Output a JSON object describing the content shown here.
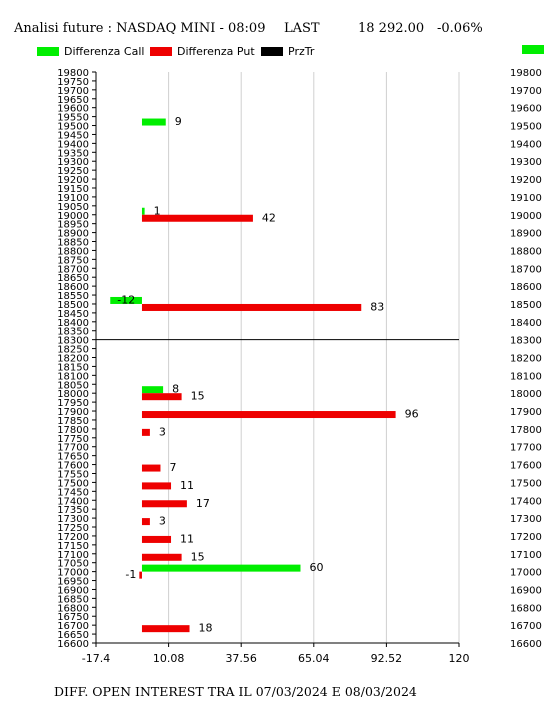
{
  "header": {
    "title": "Analisi future : NASDAQ MINI - 08:09",
    "last_label": "LAST",
    "last_value": "18 292.00",
    "change": "-0.06%"
  },
  "legend": [
    {
      "label": "Differenza Call",
      "color": "#00ee00"
    },
    {
      "label": "Differenza Put",
      "color": "#ee0000"
    },
    {
      "label": "PrzTr",
      "color": "#000000"
    }
  ],
  "footer": "DIFF. OPEN INTEREST TRA IL 07/03/2024 E 08/03/2024",
  "chart_data": {
    "type": "bar",
    "orientation": "horizontal",
    "x_ticks": [
      "-17.4",
      "10.08",
      "37.56",
      "65.04",
      "92.52",
      "120"
    ],
    "xlim": [
      -17.4,
      120
    ],
    "ylim": [
      16600,
      19800
    ],
    "y_ticks_left": [
      "19800",
      "19750",
      "19700",
      "19650",
      "19600",
      "19550",
      "19500",
      "19450",
      "19400",
      "19350",
      "19300",
      "19250",
      "19200",
      "19150",
      "19100",
      "19050",
      "19000",
      "18950",
      "18900",
      "18850",
      "18800",
      "18750",
      "18700",
      "18650",
      "18600",
      "18550",
      "18500",
      "18450",
      "18400",
      "18350",
      "18300",
      "18250",
      "18200",
      "18150",
      "18100",
      "18050",
      "18000",
      "17950",
      "17900",
      "17850",
      "17800",
      "17750",
      "17700",
      "17650",
      "17600",
      "17550",
      "17500",
      "17450",
      "17400",
      "17350",
      "17300",
      "17250",
      "17200",
      "17150",
      "17100",
      "17050",
      "17000",
      "16950",
      "16900",
      "16850",
      "16800",
      "16750",
      "16700",
      "16650",
      "16600"
    ],
    "y_ticks_right": [
      "19800",
      "19700",
      "19600",
      "19500",
      "19400",
      "19300",
      "19200",
      "19100",
      "19000",
      "18900",
      "18800",
      "18700",
      "18600",
      "18500",
      "18400",
      "18300",
      "18200",
      "18100",
      "18000",
      "17900",
      "17800",
      "17700",
      "17600",
      "17500",
      "17400",
      "17300",
      "17200",
      "17100",
      "17000",
      "16900",
      "16800",
      "16700",
      "16600"
    ],
    "price_line": 18300,
    "series": [
      {
        "name": "Differenza Call",
        "color": "#00ee00",
        "points": [
          {
            "strike": 19500,
            "value": 9,
            "label": "9"
          },
          {
            "strike": 19000,
            "value": 1,
            "label": "1"
          },
          {
            "strike": 18500,
            "value": -12,
            "label": "-12"
          },
          {
            "strike": 18000,
            "value": 8,
            "label": "8"
          },
          {
            "strike": 17000,
            "value": 60,
            "label": "60"
          }
        ]
      },
      {
        "name": "Differenza Put",
        "color": "#ee0000",
        "points": [
          {
            "strike": 19000,
            "value": 42,
            "label": "42"
          },
          {
            "strike": 18500,
            "value": 83,
            "label": "83"
          },
          {
            "strike": 18000,
            "value": 15,
            "label": "15"
          },
          {
            "strike": 17900,
            "value": 96,
            "label": "96"
          },
          {
            "strike": 17800,
            "value": 3,
            "label": "3"
          },
          {
            "strike": 17600,
            "value": 7,
            "label": "7"
          },
          {
            "strike": 17500,
            "value": 11,
            "label": "11"
          },
          {
            "strike": 17400,
            "value": 17,
            "label": "17"
          },
          {
            "strike": 17300,
            "value": 3,
            "label": "3"
          },
          {
            "strike": 17200,
            "value": 11,
            "label": "11"
          },
          {
            "strike": 17100,
            "value": 15,
            "label": "15"
          },
          {
            "strike": 17000,
            "value": -1,
            "label": "-1"
          },
          {
            "strike": 16700,
            "value": 18,
            "label": "18"
          }
        ]
      }
    ]
  }
}
